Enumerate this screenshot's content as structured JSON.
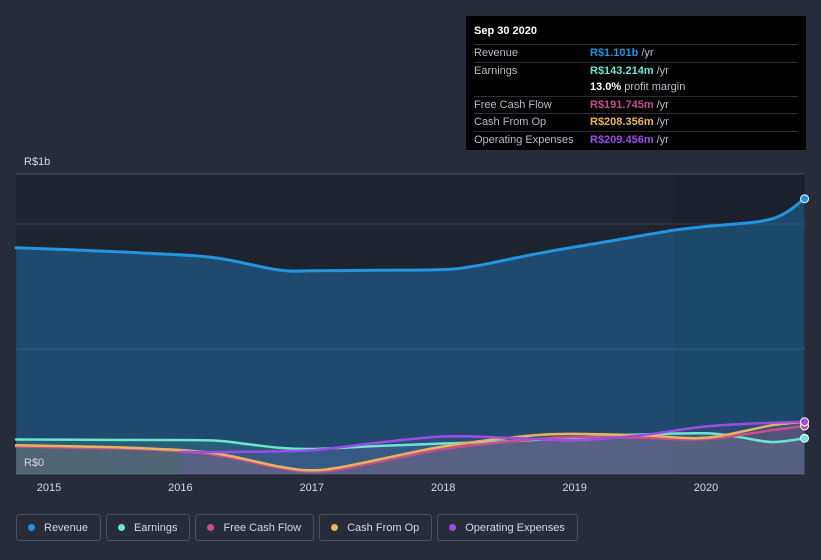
{
  "tooltip": {
    "date": "Sep 30 2020",
    "rows": [
      {
        "label": "Revenue",
        "value": "R$1.101b",
        "unit": "/yr",
        "color": "#2394df"
      },
      {
        "label": "Earnings",
        "value": "R$143.214m",
        "unit": "/yr",
        "color": "#6ce5cf"
      },
      {
        "label": "",
        "value": "13.0%",
        "unit": "profit margin",
        "color": "#ffffff"
      },
      {
        "label": "Free Cash Flow",
        "value": "R$191.745m",
        "unit": "/yr",
        "color": "#c84f8c"
      },
      {
        "label": "Cash From Op",
        "value": "R$208.356m",
        "unit": "/yr",
        "color": "#e8b35d"
      },
      {
        "label": "Operating Expenses",
        "value": "R$209.456m",
        "unit": "/yr",
        "color": "#9b4de6"
      }
    ]
  },
  "legend": [
    {
      "label": "Revenue",
      "color": "#2394df"
    },
    {
      "label": "Earnings",
      "color": "#6ce5cf"
    },
    {
      "label": "Free Cash Flow",
      "color": "#c84f8c"
    },
    {
      "label": "Cash From Op",
      "color": "#e8b35d"
    },
    {
      "label": "Operating Expenses",
      "color": "#9b4de6"
    }
  ],
  "chart_data": {
    "type": "area",
    "title": "",
    "xlabel": "",
    "ylabel": "",
    "currency_unit": "R$ millions",
    "y_axis_labels": [
      "R$1b",
      "R$0"
    ],
    "ylim": [
      0,
      1200
    ],
    "xlim": [
      2014.75,
      2020.75
    ],
    "x_ticks": [
      2015,
      2016,
      2017,
      2018,
      2019,
      2020
    ],
    "x_tick_labels": [
      "2015",
      "2016",
      "2017",
      "2018",
      "2019",
      "2020"
    ],
    "series": [
      {
        "name": "Revenue",
        "color": "#2394df",
        "x": [
          2014.75,
          2015.25,
          2015.75,
          2016.25,
          2016.75,
          2017.0,
          2017.5,
          2018.0,
          2018.25,
          2018.75,
          2019.25,
          2019.75,
          2020.0,
          2020.5,
          2020.75
        ],
        "values": [
          905,
          895,
          883,
          866,
          816,
          813,
          815,
          818,
          833,
          885,
          930,
          975,
          990,
          1020,
          1101
        ]
      },
      {
        "name": "Earnings",
        "color": "#6ce5cf",
        "x": [
          2014.75,
          2015.25,
          2015.75,
          2016.25,
          2016.5,
          2016.75,
          2017.0,
          2017.5,
          2018.0,
          2018.5,
          2019.0,
          2019.5,
          2020.0,
          2020.25,
          2020.5,
          2020.75
        ],
        "values": [
          138,
          137,
          136,
          134,
          120,
          105,
          100,
          112,
          122,
          131,
          145,
          158,
          163,
          148,
          128,
          143
        ]
      },
      {
        "name": "Free Cash Flow",
        "color": "#c84f8c",
        "x": [
          2014.75,
          2015.25,
          2015.75,
          2016.25,
          2016.75,
          2017.0,
          2017.25,
          2017.75,
          2018.0,
          2018.5,
          2019.0,
          2019.5,
          2020.0,
          2020.5,
          2020.75
        ],
        "values": [
          110,
          105,
          98,
          78,
          25,
          10,
          22,
          75,
          100,
          130,
          148,
          145,
          140,
          175,
          192
        ]
      },
      {
        "name": "Cash From Op",
        "color": "#e8b35d",
        "x": [
          2014.75,
          2015.25,
          2015.75,
          2016.25,
          2016.75,
          2017.0,
          2017.25,
          2017.75,
          2018.0,
          2018.5,
          2018.9,
          2019.5,
          2020.0,
          2020.5,
          2020.75
        ],
        "values": [
          115,
          110,
          102,
          84,
          30,
          15,
          30,
          85,
          110,
          145,
          160,
          155,
          145,
          195,
          208
        ]
      },
      {
        "name": "Operating Expenses",
        "color": "#9b4de6",
        "x": [
          2016.0,
          2016.5,
          2017.0,
          2017.5,
          2018.0,
          2018.5,
          2019.0,
          2019.5,
          2020.0,
          2020.5,
          2020.75
        ],
        "values": [
          88,
          89,
          95,
          125,
          150,
          145,
          135,
          155,
          190,
          205,
          209
        ]
      }
    ]
  }
}
